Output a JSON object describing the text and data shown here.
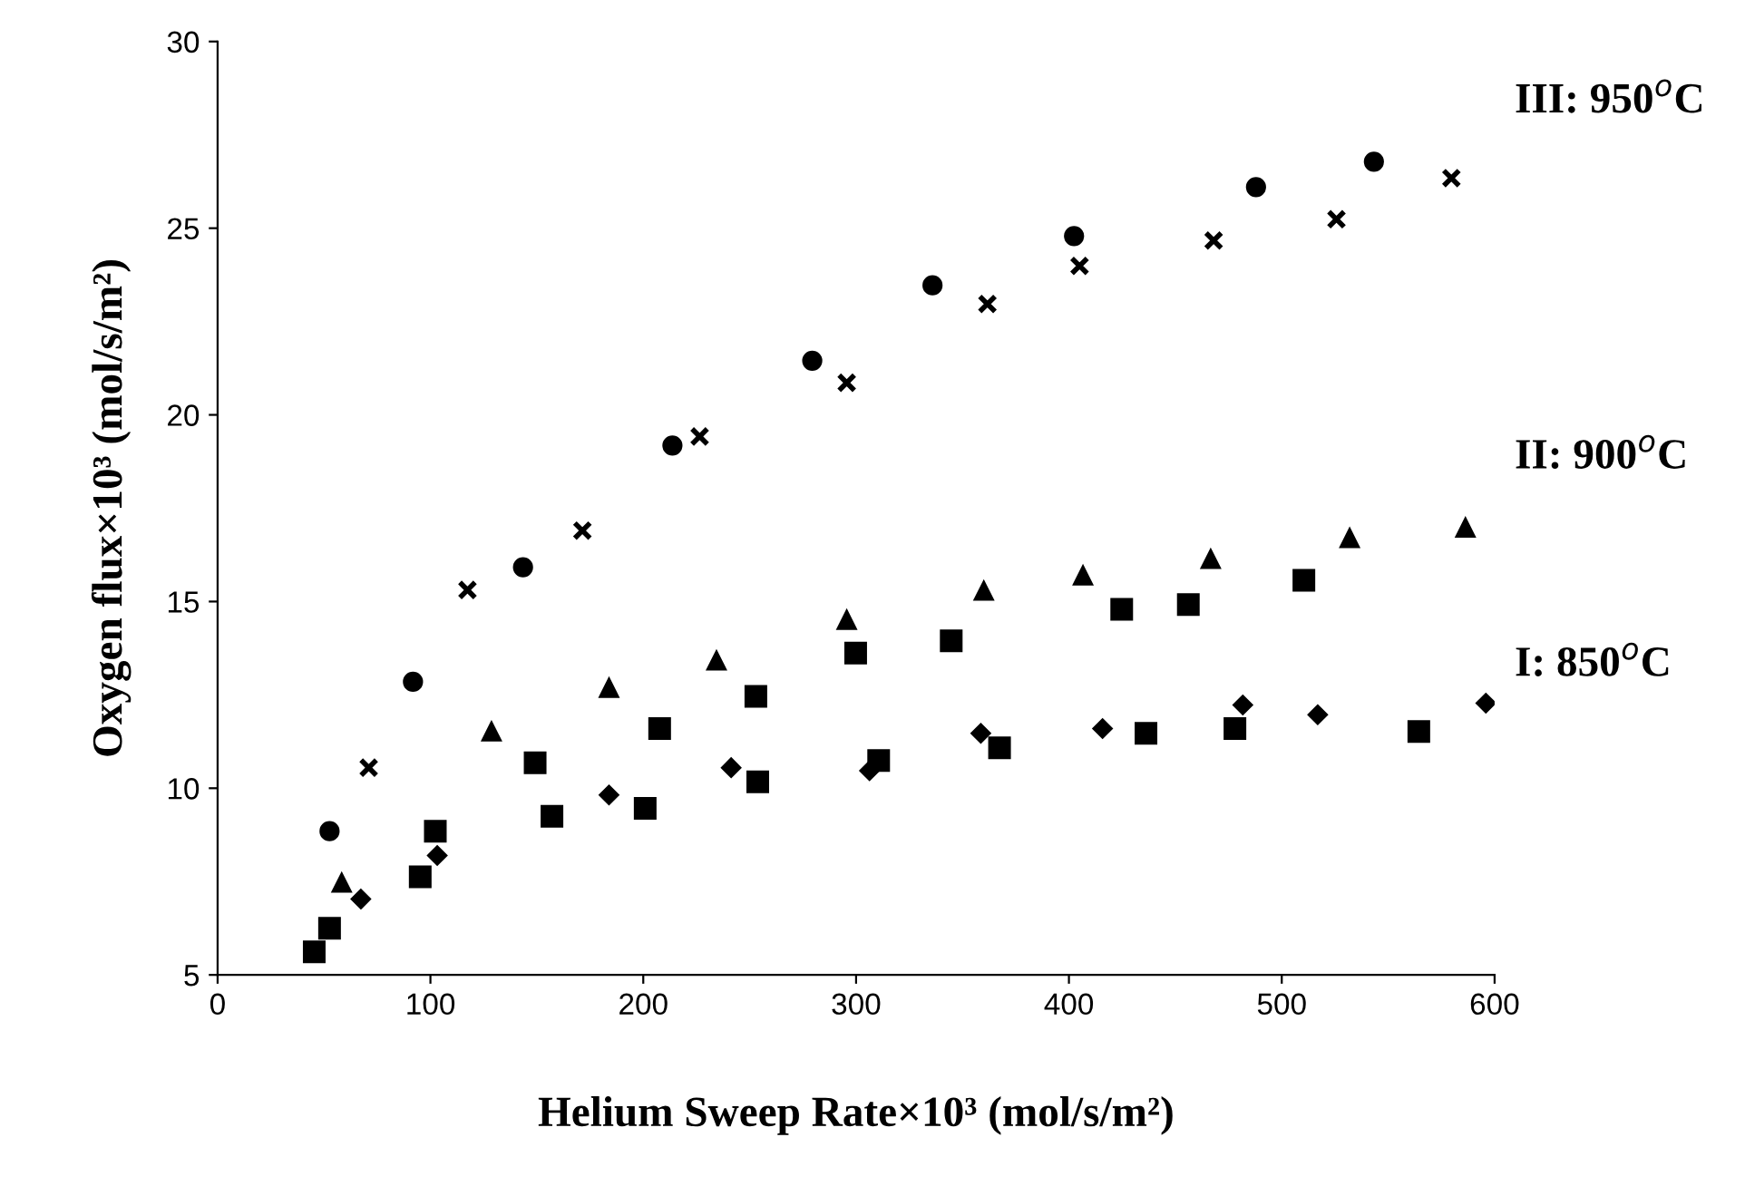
{
  "chart_data": {
    "type": "scatter",
    "xlabel": "Helium Sweep Rate×10³ (mol/s/m²)",
    "ylabel": "Oxygen flux×10³ (mol/s/m²)",
    "xlim": [
      0,
      600
    ],
    "xticks": [
      0,
      100,
      200,
      300,
      400,
      500,
      600
    ],
    "ylim": [
      5,
      30
    ],
    "yticks": [
      5,
      10,
      15,
      20,
      25,
      30
    ],
    "grid": false,
    "legend": false,
    "annotations": [
      "III: 950$^{o}$C",
      "II: 900$^{o}$C",
      "I: 850$^{o}$C"
    ],
    "series": [
      {
        "color": "#000000",
        "marker": "circle",
        "x": [
          52.6,
          91.8,
          143.5,
          213.7,
          279.4,
          335.9,
          402.4,
          487.9,
          543.3
        ],
        "values": [
          8.85,
          12.85,
          15.92,
          19.18,
          21.45,
          23.47,
          24.79,
          26.1,
          26.78
        ]
      },
      {
        "color": "#000000",
        "marker": "cross",
        "x": [
          71.0,
          117.4,
          171.4,
          226.5,
          295.6,
          361.7,
          405.0,
          468.0,
          525.7,
          579.7
        ],
        "values": [
          10.55,
          15.31,
          16.9,
          19.42,
          20.86,
          22.97,
          23.99,
          24.67,
          25.24,
          26.34
        ]
      },
      {
        "color": "#000000",
        "marker": "triangle",
        "x": [
          58.3,
          128.7,
          183.9,
          234.4,
          295.6,
          360.0,
          406.6,
          466.6,
          531.9,
          586.3
        ],
        "values": [
          7.47,
          11.52,
          12.69,
          13.42,
          14.51,
          15.29,
          15.7,
          16.14,
          16.7,
          16.98
        ]
      },
      {
        "color": "#000000",
        "marker": "square",
        "x": [
          52.6,
          102.3,
          149.2,
          207.7,
          252.9,
          299.8,
          344.7,
          424.8,
          456.1,
          510.4
        ],
        "values": [
          6.25,
          8.85,
          10.68,
          11.6,
          12.46,
          13.62,
          13.95,
          14.79,
          14.92,
          15.57
        ]
      },
      {
        "color": "#000000",
        "marker": "square",
        "x": [
          45.4,
          95.2,
          157.1,
          200.9,
          253.8,
          310.6,
          367.4,
          436.2,
          478.0,
          564.4
        ],
        "values": [
          5.62,
          7.63,
          9.25,
          9.46,
          10.17,
          10.74,
          11.08,
          11.47,
          11.6,
          11.52
        ]
      },
      {
        "color": "#000000",
        "marker": "diamond",
        "x": [
          67.3,
          103.2,
          183.9,
          241.3,
          306.3,
          358.6,
          415.8,
          481.7,
          516.9,
          595.9
        ],
        "values": [
          7.03,
          8.2,
          9.82,
          10.55,
          10.47,
          11.47,
          11.6,
          12.23,
          11.97,
          12.28
        ]
      }
    ]
  }
}
